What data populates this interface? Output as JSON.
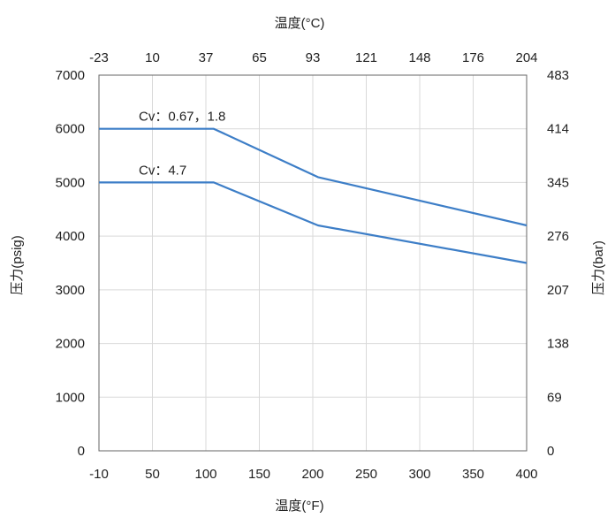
{
  "chart_data": {
    "type": "line",
    "title": "",
    "xlabel": "温度(°F)",
    "x2label": "温度(°C)",
    "ylabel": "压力(psig)",
    "y2label": "压力(bar)",
    "xlim": [
      -10,
      400
    ],
    "ylim": [
      0,
      7000
    ],
    "grid": true,
    "legend": "none",
    "x_ticks": [
      "-10",
      "50",
      "100",
      "150",
      "200",
      "250",
      "300",
      "350",
      "400"
    ],
    "x2_ticks": [
      "-23",
      "10",
      "37",
      "65",
      "93",
      "121",
      "148",
      "176",
      "204"
    ],
    "y_ticks": [
      "0",
      "1000",
      "2000",
      "3000",
      "4000",
      "5000",
      "6000",
      "7000"
    ],
    "y2_ticks": [
      "0",
      "69",
      "138",
      "207",
      "276",
      "345",
      "414",
      "483"
    ],
    "series": [
      {
        "name": "Cv：0.67，1.8",
        "color": "#3d7ec7",
        "x": [
          -10,
          100,
          200,
          400
        ],
        "y": [
          6000,
          6000,
          5100,
          4200
        ]
      },
      {
        "name": "Cv：4.7",
        "color": "#3d7ec7",
        "x": [
          -10,
          100,
          200,
          400
        ],
        "y": [
          5000,
          5000,
          4200,
          3500
        ]
      }
    ]
  }
}
